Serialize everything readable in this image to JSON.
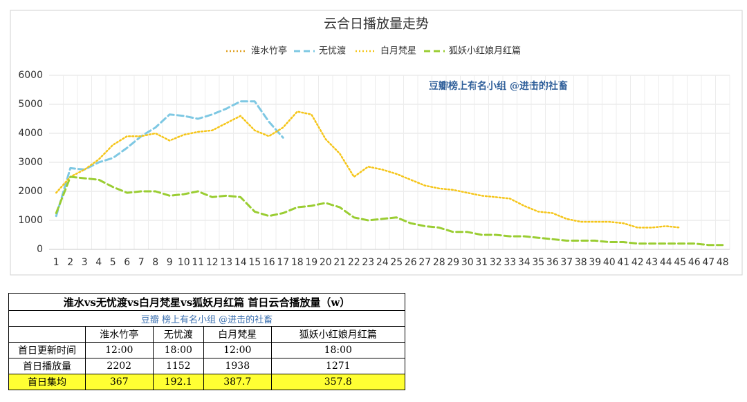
{
  "chart_data": {
    "type": "line",
    "title": "云合日播放量走势",
    "annotation": "豆瓣榜上有名小组 @进击的社畜",
    "categories": [
      "1",
      "2",
      "3",
      "4",
      "5",
      "6",
      "7",
      "8",
      "9",
      "10",
      "11",
      "12",
      "13",
      "14",
      "15",
      "16",
      "17",
      "18",
      "19",
      "20",
      "21",
      "22",
      "23",
      "24",
      "25",
      "26",
      "27",
      "28",
      "29",
      "30",
      "31",
      "32",
      "33",
      "34",
      "35",
      "36",
      "37",
      "38",
      "39",
      "40",
      "41",
      "42",
      "43",
      "44",
      "45",
      "46",
      "47",
      "48"
    ],
    "ylim": [
      0,
      6000
    ],
    "yticks": [
      0,
      1000,
      2000,
      3000,
      4000,
      5000,
      6000
    ],
    "grid": true,
    "legend": "top",
    "series": [
      {
        "name": "淮水竹亭",
        "color": "#e0a020",
        "dash": "dotted",
        "values": [
          null,
          null,
          null,
          null,
          null,
          null,
          null,
          null,
          null,
          null,
          null,
          null,
          null,
          null,
          null,
          null,
          null,
          null,
          null,
          null,
          null,
          null,
          null,
          null,
          null,
          null,
          null,
          null,
          null,
          null,
          null,
          null,
          null,
          null,
          null,
          null,
          null,
          null,
          null,
          null,
          null,
          null,
          null,
          null,
          null,
          null,
          null,
          null
        ]
      },
      {
        "name": "无忧渡",
        "color": "#7ec8e3",
        "dash": "dashed",
        "values": [
          1150,
          2800,
          2750,
          3000,
          3150,
          3500,
          3900,
          4200,
          4650,
          4600,
          4500,
          4650,
          4850,
          5100,
          5100,
          4400,
          3850,
          null,
          null,
          null,
          null,
          null,
          null,
          null,
          null,
          null,
          null,
          null,
          null,
          null,
          null,
          null,
          null,
          null,
          null,
          null,
          null,
          null,
          null,
          null,
          null,
          null,
          null,
          null,
          null,
          null,
          null,
          null
        ]
      },
      {
        "name": "白月梵星",
        "color": "#f5c518",
        "dash": "dotted",
        "values": [
          1950,
          2500,
          2750,
          3100,
          3600,
          3900,
          3900,
          4000,
          3750,
          3950,
          4050,
          4100,
          4350,
          4600,
          4100,
          3900,
          4200,
          4750,
          4650,
          3800,
          3300,
          2500,
          2850,
          2750,
          2600,
          2400,
          2200,
          2100,
          2050,
          1950,
          1850,
          1800,
          1750,
          1500,
          1300,
          1250,
          1050,
          950,
          950,
          950,
          900,
          750,
          750,
          800,
          750,
          null,
          null,
          null
        ]
      },
      {
        "name": "狐妖小红娘月红篇",
        "color": "#9acd32",
        "dash": "dashed",
        "values": [
          1250,
          2500,
          2450,
          2400,
          2150,
          1950,
          2000,
          2000,
          1850,
          1900,
          2000,
          1800,
          1850,
          1800,
          1300,
          1150,
          1250,
          1450,
          1500,
          1600,
          1450,
          1100,
          1000,
          1050,
          1100,
          900,
          800,
          750,
          600,
          600,
          500,
          500,
          450,
          450,
          400,
          350,
          300,
          300,
          300,
          250,
          250,
          200,
          200,
          200,
          200,
          200,
          150,
          150
        ]
      }
    ]
  },
  "table": {
    "title": "淮水vs无忧渡vs白月梵星vs狐妖月红篇 首日云合播放量（w）",
    "subtitle": "豆瓣 榜上有名小组 @进击的社畜",
    "header": [
      "淮水竹亭",
      "无忧渡",
      "白月梵星",
      "狐妖小红娘月红篇"
    ],
    "rows": [
      [
        "首日更新时间",
        "12:00",
        "18:00",
        "12:00",
        "18:00"
      ],
      [
        "首日播放量",
        "2202",
        "1152",
        "1938",
        "1271"
      ],
      [
        "首日集均",
        "367",
        "192.1",
        "387.7",
        "357.8"
      ]
    ]
  }
}
